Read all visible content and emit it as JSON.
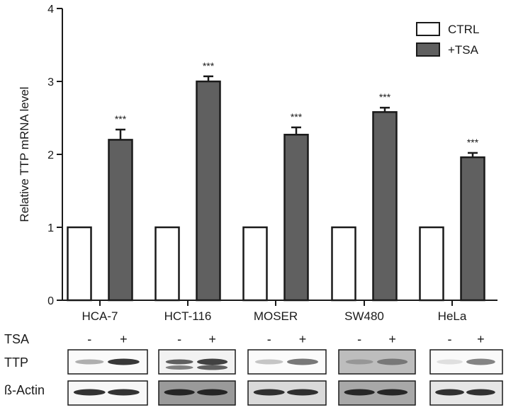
{
  "chart_data": {
    "type": "bar",
    "ylabel": "Relative TTP mRNA level",
    "xlabel": "",
    "ylim": [
      0,
      4
    ],
    "yticks": [
      "0",
      "1",
      "2",
      "3",
      "4"
    ],
    "categories": [
      "HCA-7",
      "HCT-116",
      "MOSER",
      "SW480",
      "HeLa"
    ],
    "series": [
      {
        "name": "CTRL",
        "values": [
          1,
          1,
          1,
          1,
          1
        ],
        "errors": [
          0,
          0,
          0,
          0,
          0
        ],
        "color": "#ffffff"
      },
      {
        "name": "+TSA",
        "values": [
          2.2,
          3.0,
          2.27,
          2.58,
          1.96
        ],
        "errors": [
          0.14,
          0.07,
          0.1,
          0.06,
          0.06
        ],
        "color": "#606060"
      }
    ],
    "annotations": [
      "***",
      "***",
      "***",
      "***",
      "***"
    ],
    "legend_position": "top-right",
    "grid": false
  },
  "blot": {
    "treatment_label": "TSA",
    "minus_sign": "-",
    "plus_sign": "+",
    "rows": [
      "TTP",
      "ß-Actin"
    ]
  }
}
